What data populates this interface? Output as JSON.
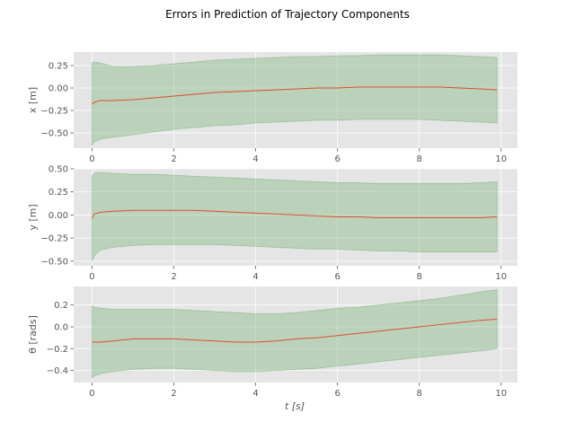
{
  "figure": {
    "title": "Errors in Prediction of Trajectory Components",
    "xlabel": "t [s]"
  },
  "colors": {
    "background": "#ffffff",
    "axes_face": "#e5e5e5",
    "grid": "#ffffff",
    "line": "#e24a33",
    "band_fill": "#7fb77e",
    "band_edge": "#5f9f5f",
    "tick_text": "#555555"
  },
  "chart_data": [
    {
      "type": "line",
      "title": "",
      "xlabel": "",
      "ylabel": "x [m]",
      "xlim": [
        -0.45,
        10.4
      ],
      "ylim": [
        -0.67,
        0.4
      ],
      "grid": true,
      "xticks": [
        0,
        2,
        4,
        6,
        8,
        10
      ],
      "xtick_labels": [
        "0",
        "2",
        "4",
        "6",
        "8",
        "10"
      ],
      "yticks": [
        -0.5,
        -0.25,
        0.0,
        0.25
      ],
      "ytick_labels": [
        "−0.50",
        "−0.25",
        "0.00",
        "0.25"
      ],
      "x": [
        0,
        0.05,
        0.2,
        0.5,
        1,
        1.5,
        2,
        2.5,
        3,
        3.5,
        4,
        4.5,
        5,
        5.5,
        6,
        6.5,
        7,
        7.5,
        8,
        8.5,
        9,
        9.5,
        9.9
      ],
      "series": [
        {
          "role": "mean",
          "values": [
            -0.18,
            -0.16,
            -0.14,
            -0.14,
            -0.13,
            -0.11,
            -0.09,
            -0.07,
            -0.05,
            -0.04,
            -0.03,
            -0.02,
            -0.01,
            0.0,
            0.0,
            0.01,
            0.01,
            0.01,
            0.01,
            0.01,
            0.0,
            -0.01,
            -0.02
          ]
        },
        {
          "role": "upper",
          "values": [
            0.28,
            0.29,
            0.28,
            0.24,
            0.24,
            0.25,
            0.27,
            0.29,
            0.31,
            0.32,
            0.33,
            0.34,
            0.35,
            0.35,
            0.36,
            0.36,
            0.37,
            0.37,
            0.37,
            0.37,
            0.36,
            0.35,
            0.34
          ]
        },
        {
          "role": "lower",
          "values": [
            -0.64,
            -0.6,
            -0.57,
            -0.55,
            -0.52,
            -0.49,
            -0.46,
            -0.44,
            -0.42,
            -0.41,
            -0.39,
            -0.38,
            -0.37,
            -0.36,
            -0.36,
            -0.35,
            -0.35,
            -0.35,
            -0.35,
            -0.36,
            -0.37,
            -0.38,
            -0.39
          ]
        }
      ]
    },
    {
      "type": "line",
      "title": "",
      "xlabel": "",
      "ylabel": "y [m]",
      "xlim": [
        -0.45,
        10.4
      ],
      "ylim": [
        -0.55,
        0.5
      ],
      "grid": true,
      "xticks": [
        0,
        2,
        4,
        6,
        8,
        10
      ],
      "xtick_labels": [
        "0",
        "2",
        "4",
        "6",
        "8",
        "10"
      ],
      "yticks": [
        -0.5,
        -0.25,
        0.0,
        0.25,
        0.5
      ],
      "ytick_labels": [
        "−0.50",
        "−0.25",
        "0.00",
        "0.25",
        "0.50"
      ],
      "x": [
        0,
        0.05,
        0.2,
        0.5,
        1,
        1.5,
        2,
        2.5,
        3,
        3.5,
        4,
        4.5,
        5,
        5.5,
        6,
        6.5,
        7,
        7.5,
        8,
        8.5,
        9,
        9.5,
        9.9
      ],
      "series": [
        {
          "role": "mean",
          "values": [
            -0.04,
            0.01,
            0.03,
            0.04,
            0.05,
            0.05,
            0.05,
            0.05,
            0.04,
            0.03,
            0.02,
            0.01,
            0.0,
            -0.01,
            -0.02,
            -0.02,
            -0.03,
            -0.03,
            -0.03,
            -0.03,
            -0.03,
            -0.03,
            -0.02
          ]
        },
        {
          "role": "upper",
          "values": [
            0.42,
            0.45,
            0.46,
            0.45,
            0.44,
            0.44,
            0.43,
            0.42,
            0.41,
            0.4,
            0.39,
            0.38,
            0.37,
            0.36,
            0.35,
            0.35,
            0.34,
            0.34,
            0.34,
            0.34,
            0.34,
            0.35,
            0.36
          ]
        },
        {
          "role": "lower",
          "values": [
            -0.5,
            -0.44,
            -0.38,
            -0.35,
            -0.33,
            -0.32,
            -0.32,
            -0.32,
            -0.32,
            -0.33,
            -0.34,
            -0.35,
            -0.36,
            -0.37,
            -0.37,
            -0.38,
            -0.39,
            -0.39,
            -0.4,
            -0.4,
            -0.4,
            -0.4,
            -0.4
          ]
        }
      ]
    },
    {
      "type": "line",
      "title": "",
      "xlabel": "t [s]",
      "ylabel": "θ [rads]",
      "xlim": [
        -0.45,
        10.4
      ],
      "ylim": [
        -0.51,
        0.37
      ],
      "grid": true,
      "xticks": [
        0,
        2,
        4,
        6,
        8,
        10
      ],
      "xtick_labels": [
        "0",
        "2",
        "4",
        "6",
        "8",
        "10"
      ],
      "yticks": [
        -0.4,
        -0.2,
        0.0,
        0.2
      ],
      "ytick_labels": [
        "−0.4",
        "−0.2",
        "0.0",
        "0.2"
      ],
      "x": [
        0,
        0.05,
        0.2,
        0.5,
        1,
        1.5,
        2,
        2.5,
        3,
        3.5,
        4,
        4.5,
        5,
        5.5,
        6,
        6.5,
        7,
        7.5,
        8,
        8.5,
        9,
        9.5,
        9.9
      ],
      "series": [
        {
          "role": "mean",
          "values": [
            -0.14,
            -0.14,
            -0.14,
            -0.13,
            -0.11,
            -0.11,
            -0.11,
            -0.12,
            -0.13,
            -0.14,
            -0.14,
            -0.13,
            -0.11,
            -0.1,
            -0.08,
            -0.06,
            -0.04,
            -0.02,
            0.0,
            0.02,
            0.04,
            0.06,
            0.07
          ]
        },
        {
          "role": "upper",
          "values": [
            0.19,
            0.18,
            0.17,
            0.16,
            0.16,
            0.16,
            0.16,
            0.15,
            0.14,
            0.13,
            0.12,
            0.12,
            0.13,
            0.15,
            0.17,
            0.18,
            0.2,
            0.22,
            0.24,
            0.26,
            0.29,
            0.32,
            0.34
          ]
        },
        {
          "role": "lower",
          "values": [
            -0.47,
            -0.45,
            -0.43,
            -0.41,
            -0.39,
            -0.38,
            -0.38,
            -0.39,
            -0.4,
            -0.41,
            -0.41,
            -0.4,
            -0.39,
            -0.38,
            -0.36,
            -0.34,
            -0.32,
            -0.3,
            -0.28,
            -0.26,
            -0.24,
            -0.22,
            -0.2
          ]
        }
      ]
    }
  ]
}
